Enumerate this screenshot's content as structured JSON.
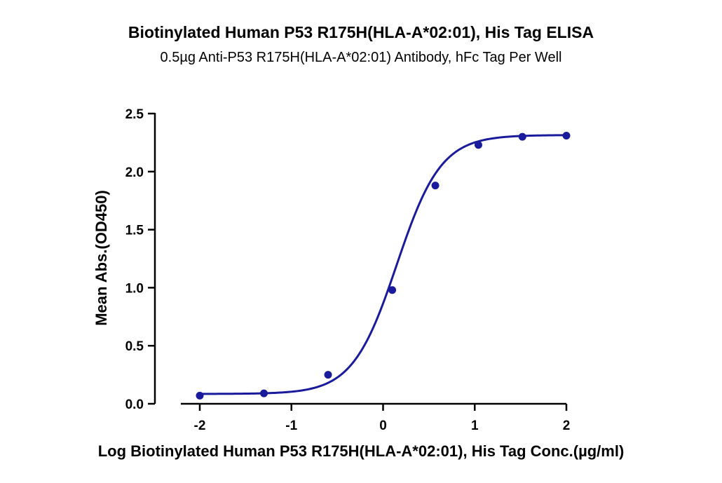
{
  "chart_data": {
    "type": "scatter",
    "title": "Biotinylated Human P53 R175H(HLA-A*02:01), His Tag ELISA",
    "subtitle": "0.5µg Anti-P53 R175H(HLA-A*02:01) Antibody, hFc Tag Per Well",
    "xlabel": "Log Biotinylated Human P53 R175H(HLA-A*02:01), His Tag Conc.(µg/ml)",
    "ylabel": "Mean Abs.(OD450)",
    "xlim": [
      -2,
      2
    ],
    "ylim": [
      0,
      2.5
    ],
    "xticks": [
      "-2",
      "-1",
      "0",
      "1",
      "2"
    ],
    "yticks": [
      "0.0",
      "0.5",
      "1.0",
      "1.5",
      "2.0",
      "2.5"
    ],
    "series": [
      {
        "x": [
          -2.0,
          -1.3,
          -0.6,
          0.1,
          0.57,
          1.04,
          1.52,
          2.0
        ],
        "y": [
          0.07,
          0.09,
          0.25,
          0.98,
          1.88,
          2.23,
          2.3,
          2.31
        ],
        "fit": {
          "model": "4PL",
          "bottom": 0.085,
          "top": 2.315,
          "log_ec50": 0.15,
          "hill": 1.8
        }
      }
    ],
    "color": "#1a1a9c",
    "grid": false,
    "legend": "none"
  }
}
